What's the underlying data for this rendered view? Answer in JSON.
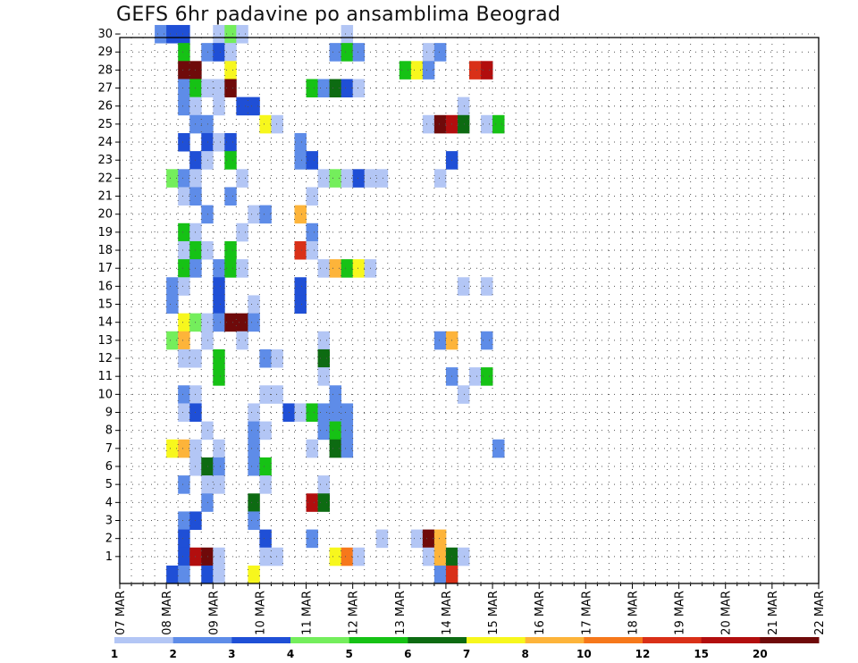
{
  "title": "GEFS 6hr padavine po ansamblima Beograd",
  "chart_data": {
    "type": "heatmap",
    "title": "GEFS 6hr padavine po ansamblima Beograd",
    "y_ticks": [
      "1",
      "2",
      "3",
      "4",
      "5",
      "6",
      "7",
      "8",
      "9",
      "10",
      "11",
      "12",
      "13",
      "14",
      "15",
      "16",
      "17",
      "18",
      "19",
      "20",
      "21",
      "22",
      "23",
      "24",
      "25",
      "26",
      "27",
      "28",
      "29",
      "30"
    ],
    "x_ticks": [
      "07 MAR",
      "08 MAR",
      "09 MAR",
      "10 MAR",
      "11 MAR",
      "12 MAR",
      "13 MAR",
      "14 MAR",
      "15 MAR",
      "16 MAR",
      "17 MAR",
      "18 MAR",
      "19 MAR",
      "20 MAR",
      "21 MAR",
      "22 MAR"
    ],
    "colorbar": {
      "labels": [
        "1",
        "2",
        "3",
        "4",
        "5",
        "6",
        "7",
        "8",
        "10",
        "12",
        "15",
        "20"
      ],
      "colors": [
        "#b3c6f5",
        "#5e8ce8",
        "#1f4fd6",
        "#74ee5c",
        "#16c215",
        "#0d6b12",
        "#f7f71d",
        "#fdb43a",
        "#f6781b",
        "#d93018",
        "#b20e0e",
        "#6f0a0a"
      ]
    },
    "grid": true,
    "note_x_unit": "6-hour steps from 07 MAR 00z",
    "cells": [
      [
        30,
        "07 MAR 18z",
        2
      ],
      [
        30,
        "08 MAR 00z",
        3
      ],
      [
        30,
        "08 MAR 06z",
        3
      ],
      [
        30,
        "09 MAR 00z",
        1
      ],
      [
        30,
        "09 MAR 06z",
        4
      ],
      [
        30,
        "09 MAR 12z",
        1
      ],
      [
        30,
        "11 MAR 18z",
        1
      ],
      [
        29,
        "08 MAR 06z",
        5
      ],
      [
        29,
        "08 MAR 18z",
        2
      ],
      [
        29,
        "09 MAR 00z",
        3
      ],
      [
        29,
        "09 MAR 06z",
        1
      ],
      [
        29,
        "11 MAR 12z",
        2
      ],
      [
        29,
        "11 MAR 18z",
        5
      ],
      [
        29,
        "12 MAR 00z",
        2
      ],
      [
        29,
        "13 MAR 12z",
        1
      ],
      [
        29,
        "13 MAR 18z",
        2
      ],
      [
        28,
        "08 MAR 06z",
        20
      ],
      [
        28,
        "08 MAR 12z",
        20
      ],
      [
        28,
        "09 MAR 06z",
        7
      ],
      [
        28,
        "13 MAR 00z",
        5
      ],
      [
        28,
        "13 MAR 06z",
        7
      ],
      [
        28,
        "13 MAR 12z",
        2
      ],
      [
        28,
        "14 MAR 12z",
        12
      ],
      [
        28,
        "14 MAR 18z",
        15
      ],
      [
        27,
        "08 MAR 06z",
        2
      ],
      [
        27,
        "08 MAR 12z",
        5
      ],
      [
        27,
        "08 MAR 18z",
        1
      ],
      [
        27,
        "09 MAR 00z",
        1
      ],
      [
        27,
        "09 MAR 06z",
        20
      ],
      [
        27,
        "11 MAR 00z",
        5
      ],
      [
        27,
        "11 MAR 06z",
        2
      ],
      [
        27,
        "11 MAR 12z",
        6
      ],
      [
        27,
        "11 MAR 18z",
        3
      ],
      [
        27,
        "12 MAR 00z",
        1
      ],
      [
        26,
        "08 MAR 06z",
        2
      ],
      [
        26,
        "08 MAR 12z",
        1
      ],
      [
        26,
        "09 MAR 00z",
        1
      ],
      [
        26,
        "09 MAR 12z",
        3
      ],
      [
        26,
        "09 MAR 18z",
        3
      ],
      [
        26,
        "14 MAR 06z",
        1
      ],
      [
        25,
        "08 MAR 12z",
        2
      ],
      [
        25,
        "08 MAR 18z",
        2
      ],
      [
        25,
        "10 MAR 00z",
        7
      ],
      [
        25,
        "10 MAR 06z",
        1
      ],
      [
        25,
        "13 MAR 12z",
        1
      ],
      [
        25,
        "13 MAR 18z",
        20
      ],
      [
        25,
        "14 MAR 00z",
        15
      ],
      [
        25,
        "14 MAR 06z",
        6
      ],
      [
        25,
        "14 MAR 18z",
        1
      ],
      [
        25,
        "15 MAR 00z",
        5
      ],
      [
        24,
        "08 MAR 06z",
        3
      ],
      [
        24,
        "08 MAR 18z",
        3
      ],
      [
        24,
        "09 MAR 00z",
        1
      ],
      [
        24,
        "09 MAR 06z",
        3
      ],
      [
        24,
        "10 MAR 18z",
        2
      ],
      [
        23,
        "08 MAR 12z",
        3
      ],
      [
        23,
        "08 MAR 18z",
        1
      ],
      [
        23,
        "09 MAR 06z",
        5
      ],
      [
        23,
        "10 MAR 18z",
        2
      ],
      [
        23,
        "11 MAR 00z",
        3
      ],
      [
        23,
        "14 MAR 00z",
        3
      ],
      [
        22,
        "08 MAR 00z",
        4
      ],
      [
        22,
        "08 MAR 06z",
        2
      ],
      [
        22,
        "08 MAR 12z",
        1
      ],
      [
        22,
        "09 MAR 12z",
        1
      ],
      [
        22,
        "11 MAR 06z",
        1
      ],
      [
        22,
        "11 MAR 12z",
        4
      ],
      [
        22,
        "11 MAR 18z",
        1
      ],
      [
        22,
        "12 MAR 00z",
        3
      ],
      [
        22,
        "12 MAR 06z",
        1
      ],
      [
        22,
        "12 MAR 12z",
        1
      ],
      [
        22,
        "13 MAR 18z",
        1
      ],
      [
        21,
        "08 MAR 06z",
        1
      ],
      [
        21,
        "08 MAR 12z",
        2
      ],
      [
        21,
        "09 MAR 06z",
        2
      ],
      [
        21,
        "11 MAR 00z",
        1
      ],
      [
        20,
        "08 MAR 18z",
        2
      ],
      [
        20,
        "09 MAR 18z",
        1
      ],
      [
        20,
        "10 MAR 00z",
        2
      ],
      [
        20,
        "10 MAR 18z",
        8
      ],
      [
        19,
        "08 MAR 06z",
        5
      ],
      [
        19,
        "08 MAR 12z",
        1
      ],
      [
        19,
        "09 MAR 12z",
        1
      ],
      [
        19,
        "11 MAR 00z",
        2
      ],
      [
        18,
        "08 MAR 06z",
        1
      ],
      [
        18,
        "08 MAR 12z",
        5
      ],
      [
        18,
        "08 MAR 18z",
        1
      ],
      [
        18,
        "09 MAR 06z",
        5
      ],
      [
        18,
        "10 MAR 18z",
        12
      ],
      [
        18,
        "11 MAR 00z",
        1
      ],
      [
        17,
        "08 MAR 06z",
        5
      ],
      [
        17,
        "08 MAR 12z",
        2
      ],
      [
        17,
        "09 MAR 00z",
        2
      ],
      [
        17,
        "09 MAR 06z",
        5
      ],
      [
        17,
        "09 MAR 12z",
        1
      ],
      [
        17,
        "11 MAR 06z",
        1
      ],
      [
        17,
        "11 MAR 12z",
        8
      ],
      [
        17,
        "11 MAR 18z",
        5
      ],
      [
        17,
        "12 MAR 00z",
        7
      ],
      [
        17,
        "12 MAR 06z",
        1
      ],
      [
        16,
        "08 MAR 00z",
        2
      ],
      [
        16,
        "08 MAR 06z",
        1
      ],
      [
        16,
        "09 MAR 00z",
        3
      ],
      [
        16,
        "10 MAR 18z",
        3
      ],
      [
        16,
        "14 MAR 06z",
        1
      ],
      [
        16,
        "14 MAR 18z",
        1
      ],
      [
        15,
        "08 MAR 00z",
        2
      ],
      [
        15,
        "09 MAR 00z",
        3
      ],
      [
        15,
        "09 MAR 18z",
        1
      ],
      [
        15,
        "10 MAR 18z",
        3
      ],
      [
        14,
        "08 MAR 06z",
        7
      ],
      [
        14,
        "08 MAR 12z",
        4
      ],
      [
        14,
        "08 MAR 18z",
        1
      ],
      [
        14,
        "09 MAR 00z",
        2
      ],
      [
        14,
        "09 MAR 06z",
        20
      ],
      [
        14,
        "09 MAR 12z",
        20
      ],
      [
        14,
        "09 MAR 18z",
        2
      ],
      [
        13,
        "08 MAR 00z",
        4
      ],
      [
        13,
        "08 MAR 06z",
        8
      ],
      [
        13,
        "08 MAR 18z",
        1
      ],
      [
        13,
        "09 MAR 12z",
        1
      ],
      [
        13,
        "11 MAR 06z",
        1
      ],
      [
        13,
        "13 MAR 18z",
        2
      ],
      [
        13,
        "14 MAR 00z",
        8
      ],
      [
        13,
        "14 MAR 18z",
        2
      ],
      [
        12,
        "08 MAR 06z",
        1
      ],
      [
        12,
        "08 MAR 12z",
        1
      ],
      [
        12,
        "09 MAR 00z",
        5
      ],
      [
        12,
        "10 MAR 00z",
        2
      ],
      [
        12,
        "10 MAR 06z",
        1
      ],
      [
        12,
        "11 MAR 06z",
        6
      ],
      [
        11,
        "09 MAR 00z",
        5
      ],
      [
        11,
        "11 MAR 06z",
        1
      ],
      [
        11,
        "14 MAR 00z",
        2
      ],
      [
        11,
        "14 MAR 12z",
        1
      ],
      [
        11,
        "14 MAR 18z",
        5
      ],
      [
        10,
        "08 MAR 06z",
        2
      ],
      [
        10,
        "08 MAR 12z",
        1
      ],
      [
        10,
        "10 MAR 00z",
        1
      ],
      [
        10,
        "10 MAR 06z",
        1
      ],
      [
        10,
        "11 MAR 12z",
        2
      ],
      [
        10,
        "14 MAR 06z",
        1
      ],
      [
        9,
        "08 MAR 06z",
        1
      ],
      [
        9,
        "08 MAR 12z",
        3
      ],
      [
        9,
        "09 MAR 18z",
        1
      ],
      [
        9,
        "10 MAR 12z",
        3
      ],
      [
        9,
        "10 MAR 18z",
        1
      ],
      [
        9,
        "11 MAR 00z",
        5
      ],
      [
        9,
        "11 MAR 06z",
        2
      ],
      [
        9,
        "11 MAR 12z",
        2
      ],
      [
        9,
        "11 MAR 18z",
        2
      ],
      [
        8,
        "08 MAR 18z",
        1
      ],
      [
        8,
        "09 MAR 18z",
        2
      ],
      [
        8,
        "10 MAR 00z",
        1
      ],
      [
        8,
        "11 MAR 06z",
        2
      ],
      [
        8,
        "11 MAR 12z",
        5
      ],
      [
        8,
        "11 MAR 18z",
        2
      ],
      [
        7,
        "08 MAR 00z",
        7
      ],
      [
        7,
        "08 MAR 06z",
        8
      ],
      [
        7,
        "08 MAR 12z",
        1
      ],
      [
        7,
        "09 MAR 00z",
        1
      ],
      [
        7,
        "09 MAR 18z",
        2
      ],
      [
        7,
        "11 MAR 00z",
        1
      ],
      [
        7,
        "11 MAR 12z",
        6
      ],
      [
        7,
        "11 MAR 18z",
        2
      ],
      [
        7,
        "15 MAR 00z",
        2
      ],
      [
        6,
        "08 MAR 12z",
        1
      ],
      [
        6,
        "08 MAR 18z",
        6
      ],
      [
        6,
        "09 MAR 00z",
        2
      ],
      [
        6,
        "09 MAR 18z",
        2
      ],
      [
        6,
        "10 MAR 00z",
        5
      ],
      [
        5,
        "08 MAR 06z",
        2
      ],
      [
        5,
        "08 MAR 18z",
        1
      ],
      [
        5,
        "09 MAR 00z",
        1
      ],
      [
        5,
        "10 MAR 00z",
        1
      ],
      [
        5,
        "11 MAR 06z",
        1
      ],
      [
        4,
        "08 MAR 18z",
        2
      ],
      [
        4,
        "09 MAR 18z",
        6
      ],
      [
        4,
        "11 MAR 00z",
        15
      ],
      [
        4,
        "11 MAR 06z",
        6
      ],
      [
        3,
        "08 MAR 06z",
        2
      ],
      [
        3,
        "08 MAR 12z",
        3
      ],
      [
        3,
        "09 MAR 18z",
        2
      ],
      [
        2,
        "08 MAR 06z",
        3
      ],
      [
        2,
        "10 MAR 00z",
        3
      ],
      [
        2,
        "11 MAR 00z",
        2
      ],
      [
        2,
        "12 MAR 12z",
        1
      ],
      [
        2,
        "13 MAR 06z",
        1
      ],
      [
        2,
        "13 MAR 12z",
        20
      ],
      [
        2,
        "13 MAR 18z",
        8
      ],
      [
        1,
        "08 MAR 06z",
        3
      ],
      [
        1,
        "08 MAR 12z",
        15
      ],
      [
        1,
        "08 MAR 18z",
        20
      ],
      [
        1,
        "09 MAR 00z",
        1
      ],
      [
        1,
        "10 MAR 00z",
        1
      ],
      [
        1,
        "10 MAR 06z",
        1
      ],
      [
        1,
        "11 MAR 12z",
        7
      ],
      [
        1,
        "11 MAR 18z",
        10
      ],
      [
        1,
        "12 MAR 00z",
        1
      ],
      [
        1,
        "13 MAR 12z",
        1
      ],
      [
        1,
        "13 MAR 18z",
        8
      ],
      [
        1,
        "14 MAR 00z",
        6
      ],
      [
        1,
        "14 MAR 06z",
        1
      ],
      [
        0,
        "08 MAR 00z",
        3
      ],
      [
        0,
        "08 MAR 06z",
        2
      ],
      [
        0,
        "08 MAR 18z",
        3
      ],
      [
        0,
        "09 MAR 00z",
        1
      ],
      [
        0,
        "09 MAR 18z",
        7
      ],
      [
        0,
        "13 MAR 18z",
        2
      ],
      [
        0,
        "14 MAR 00z",
        12
      ]
    ]
  }
}
